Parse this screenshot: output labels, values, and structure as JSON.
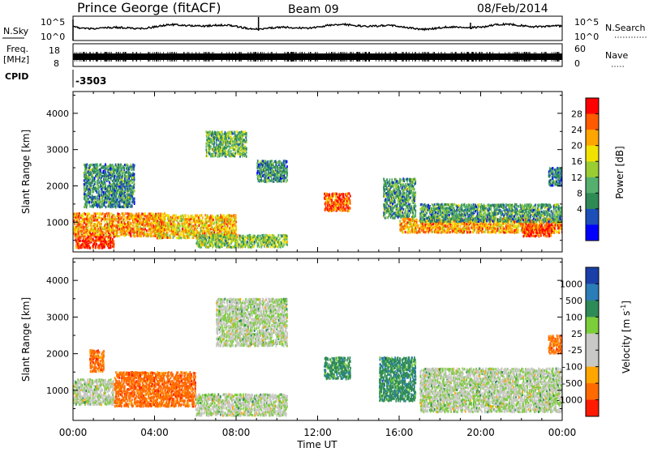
{
  "header": {
    "station": "Prince George (fitACF)",
    "beam": "Beam 09",
    "date": "08/Feb/2014"
  },
  "top_panels": {
    "nsky": {
      "label": "N.Sky",
      "y_ticks_left": [
        "10^5",
        "10^0"
      ],
      "right_label": "N.Search",
      "y_ticks_right": [
        "10^5",
        "10^0"
      ]
    },
    "freq": {
      "label_line1": "Freq.",
      "label_line2": "[MHz]",
      "y_ticks_left": [
        "18",
        "8"
      ],
      "right_label": "Nave",
      "y_ticks_right": [
        "60",
        "0"
      ]
    },
    "cpid": {
      "label": "CPID",
      "value": "-3503"
    }
  },
  "colors": {
    "power": [
      "#0000ff",
      "#1c4fb8",
      "#2f8a55",
      "#55b06e",
      "#9acd32",
      "#f2e200",
      "#ffa500",
      "#ff5a00",
      "#ff0000"
    ],
    "velocity": [
      "#1b3fa8",
      "#2b7db8",
      "#2e8b57",
      "#7ccd3a",
      "#c8c8c4",
      "#c8c8c4",
      "#ffa500",
      "#ff6a00",
      "#ff1a00"
    ]
  },
  "chart_data": [
    {
      "type": "heatmap",
      "title": "",
      "xlabel": "",
      "ylabel": "Slant Range [km]",
      "xlim": [
        "00:00",
        "24:00"
      ],
      "ylim": [
        180,
        4600
      ],
      "x_ticks": [
        "00:00",
        "04:00",
        "08:00",
        "12:00",
        "16:00",
        "20:00",
        "00:00"
      ],
      "y_ticks": [
        1000,
        2000,
        3000,
        4000
      ],
      "colorbar": {
        "label": "Power [dB]",
        "ticks": [
          28,
          24,
          20,
          16,
          12,
          8,
          4
        ],
        "range": [
          0,
          30
        ]
      },
      "patches": [
        {
          "t0": 0.0,
          "t1": 4.5,
          "r0": 600,
          "r1": 1250,
          "value": 22
        },
        {
          "t0": 0.1,
          "t1": 2.0,
          "r0": 280,
          "r1": 600,
          "value": 27
        },
        {
          "t0": 4.0,
          "t1": 8.0,
          "r0": 550,
          "r1": 1200,
          "value": 20
        },
        {
          "t0": 6.0,
          "t1": 10.5,
          "r0": 300,
          "r1": 650,
          "value": 14
        },
        {
          "t0": 0.5,
          "t1": 3.0,
          "r0": 1400,
          "r1": 2600,
          "value": 9
        },
        {
          "t0": 6.5,
          "t1": 8.5,
          "r0": 2800,
          "r1": 3500,
          "value": 12
        },
        {
          "t0": 9.0,
          "t1": 10.5,
          "r0": 2100,
          "r1": 2700,
          "value": 9
        },
        {
          "t0": 12.3,
          "t1": 13.6,
          "r0": 1300,
          "r1": 1800,
          "value": 25
        },
        {
          "t0": 15.2,
          "t1": 16.8,
          "r0": 1100,
          "r1": 2200,
          "value": 10
        },
        {
          "t0": 16.0,
          "t1": 24.0,
          "r0": 700,
          "r1": 1100,
          "value": 22
        },
        {
          "t0": 17.0,
          "t1": 24.0,
          "r0": 1000,
          "r1": 1500,
          "value": 10
        },
        {
          "t0": 22.0,
          "t1": 23.5,
          "r0": 600,
          "r1": 950,
          "value": 27
        },
        {
          "t0": 23.3,
          "t1": 24.0,
          "r0": 2000,
          "r1": 2500,
          "value": 8
        }
      ]
    },
    {
      "type": "heatmap",
      "title": "",
      "xlabel": "Time UT",
      "ylabel": "Slant Range [km]",
      "xlim": [
        "00:00",
        "24:00"
      ],
      "ylim": [
        180,
        4600
      ],
      "x_ticks": [
        "00:00",
        "04:00",
        "08:00",
        "12:00",
        "16:00",
        "20:00",
        "00:00"
      ],
      "y_ticks": [
        1000,
        2000,
        3000,
        4000
      ],
      "colorbar": {
        "label": "Velocity [m s^-1]",
        "ticks": [
          1000,
          500,
          100,
          25,
          -25,
          -100,
          -500,
          -1000
        ]
      },
      "patches": [
        {
          "t0": 0.0,
          "t1": 2.0,
          "r0": 600,
          "r1": 1300,
          "value": 0
        },
        {
          "t0": 2.0,
          "t1": 6.0,
          "r0": 550,
          "r1": 1500,
          "value": -400
        },
        {
          "t0": 6.0,
          "t1": 10.5,
          "r0": 300,
          "r1": 900,
          "value": 0
        },
        {
          "t0": 7.0,
          "t1": 10.5,
          "r0": 2200,
          "r1": 3500,
          "value": 0
        },
        {
          "t0": 12.3,
          "t1": 13.6,
          "r0": 1300,
          "r1": 1900,
          "value": 150
        },
        {
          "t0": 15.0,
          "t1": 16.8,
          "r0": 700,
          "r1": 1900,
          "value": 200
        },
        {
          "t0": 17.0,
          "t1": 24.0,
          "r0": 400,
          "r1": 1600,
          "value": 0
        },
        {
          "t0": 0.8,
          "t1": 1.5,
          "r0": 1500,
          "r1": 2100,
          "value": -300
        },
        {
          "t0": 23.3,
          "t1": 24.0,
          "r0": 2000,
          "r1": 2500,
          "value": -300
        }
      ]
    }
  ]
}
